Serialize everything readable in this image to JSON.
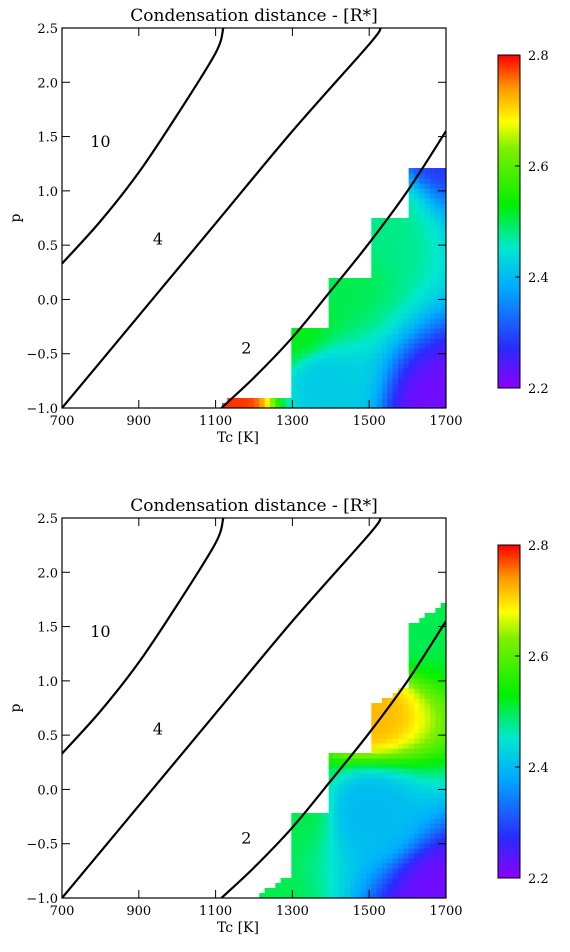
{
  "chart_data": [
    {
      "type": "heatmap",
      "title": "Condensation distance - [R*]",
      "xlabel": "Tc [K]",
      "ylabel": "p",
      "xlim": [
        700,
        1700
      ],
      "ylim": [
        -1.0,
        2.5
      ],
      "xticks": [
        "700",
        "900",
        "1100",
        "1300",
        "1500",
        "1700"
      ],
      "yticks": [
        "-1.0",
        "-0.5",
        "0.0",
        "0.5",
        "1.0",
        "1.5",
        "2.0",
        "2.5"
      ],
      "colorbar": {
        "min": 2.2,
        "max": 2.8,
        "ticks": [
          "2.2",
          "2.4",
          "2.6",
          "2.8"
        ],
        "colormap": "rainbow"
      },
      "contours": [
        {
          "label": "10",
          "points": [
            [
              700,
              0.33
            ],
            [
              800,
              0.72
            ],
            [
              900,
              1.17
            ],
            [
              1000,
              1.7
            ],
            [
              1100,
              2.27
            ],
            [
              1120,
              2.5
            ]
          ]
        },
        {
          "label": "4",
          "points": [
            [
              700,
              -1.0
            ],
            [
              900,
              -0.15
            ],
            [
              1100,
              0.7
            ],
            [
              1300,
              1.55
            ],
            [
              1500,
              2.35
            ],
            [
              1530,
              2.5
            ]
          ]
        },
        {
          "label": "2",
          "points": [
            [
              1115,
              -1.0
            ],
            [
              1200,
              -0.72
            ],
            [
              1300,
              -0.35
            ],
            [
              1400,
              0.08
            ],
            [
              1500,
              0.52
            ],
            [
              1600,
              1.0
            ],
            [
              1700,
              1.55
            ]
          ]
        }
      ],
      "colored_region": {
        "boundary": [
          [
            1115,
            -1.0
          ],
          [
            1130,
            -0.9
          ],
          [
            1300,
            -0.9
          ],
          [
            1300,
            -0.25
          ],
          [
            1400,
            -0.25
          ],
          [
            1400,
            0.2
          ],
          [
            1500,
            0.2
          ],
          [
            1500,
            0.75
          ],
          [
            1600,
            0.75
          ],
          [
            1600,
            1.23
          ],
          [
            1700,
            1.23
          ],
          [
            1700,
            -1.0
          ]
        ],
        "value_points": [
          {
            "x": 1125,
            "y": -0.95,
            "value": 2.78
          },
          {
            "x": 1300,
            "y": -0.25,
            "value": 2.52
          },
          {
            "x": 1400,
            "y": 0.2,
            "value": 2.5
          },
          {
            "x": 1500,
            "y": 0.75,
            "value": 2.48
          },
          {
            "x": 1700,
            "y": 1.5,
            "value": 2.28
          },
          {
            "x": 1380,
            "y": -0.8,
            "value": 2.42
          },
          {
            "x": 1700,
            "y": -1.0,
            "value": 2.22
          }
        ]
      }
    },
    {
      "type": "heatmap",
      "title": "Condensation distance - [R*]",
      "xlabel": "Tc [K]",
      "ylabel": "p",
      "xlim": [
        700,
        1700
      ],
      "ylim": [
        -1.0,
        2.5
      ],
      "xticks": [
        "700",
        "900",
        "1100",
        "1300",
        "1500",
        "1700"
      ],
      "yticks": [
        "-1.0",
        "-0.5",
        "0.0",
        "0.5",
        "1.0",
        "1.5",
        "2.0",
        "2.5"
      ],
      "colorbar": {
        "min": 2.2,
        "max": 2.8,
        "ticks": [
          "2.2",
          "2.4",
          "2.6",
          "2.8"
        ],
        "colormap": "rainbow"
      },
      "contours": [
        {
          "label": "10",
          "points": [
            [
              700,
              0.33
            ],
            [
              800,
              0.72
            ],
            [
              900,
              1.17
            ],
            [
              1000,
              1.7
            ],
            [
              1100,
              2.27
            ],
            [
              1120,
              2.5
            ]
          ]
        },
        {
          "label": "4",
          "points": [
            [
              700,
              -1.0
            ],
            [
              900,
              -0.15
            ],
            [
              1100,
              0.7
            ],
            [
              1300,
              1.55
            ],
            [
              1500,
              2.35
            ],
            [
              1530,
              2.5
            ]
          ]
        },
        {
          "label": "2",
          "points": [
            [
              1115,
              -1.0
            ],
            [
              1200,
              -0.72
            ],
            [
              1300,
              -0.35
            ],
            [
              1400,
              0.08
            ],
            [
              1500,
              0.52
            ],
            [
              1600,
              1.0
            ],
            [
              1700,
              1.55
            ]
          ]
        }
      ],
      "colored_region": {
        "boundary": [
          [
            1200,
            -1.0
          ],
          [
            1300,
            -0.78
          ],
          [
            1300,
            -0.2
          ],
          [
            1400,
            -0.2
          ],
          [
            1400,
            0.35
          ],
          [
            1500,
            0.35
          ],
          [
            1500,
            0.75
          ],
          [
            1600,
            0.95
          ],
          [
            1600,
            1.5
          ],
          [
            1700,
            1.72
          ],
          [
            1700,
            -1.0
          ]
        ],
        "value_points": [
          {
            "x": 1200,
            "y": -1.0,
            "value": 2.5
          },
          {
            "x": 1300,
            "y": -0.2,
            "value": 2.5
          },
          {
            "x": 1500,
            "y": 0.72,
            "value": 2.72
          },
          {
            "x": 1600,
            "y": 1.5,
            "value": 2.5
          },
          {
            "x": 1700,
            "y": 1.72,
            "value": 2.5
          },
          {
            "x": 1500,
            "y": -0.2,
            "value": 2.4
          },
          {
            "x": 1700,
            "y": -1.0,
            "value": 2.22
          }
        ]
      }
    }
  ]
}
